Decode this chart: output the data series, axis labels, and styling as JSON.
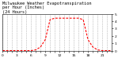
{
  "title": "Milwaukee Weather Evapotranspiration\nper Hour (Inches)\n(24 Hours)",
  "hours": [
    0,
    1,
    2,
    3,
    4,
    5,
    6,
    7,
    8,
    9,
    10,
    11,
    12,
    13,
    14,
    15,
    16,
    17,
    18,
    19,
    20,
    21,
    22,
    23
  ],
  "values": [
    0.0,
    0.0,
    0.0,
    0.0,
    0.0,
    0.0,
    0.0,
    0.001,
    0.005,
    0.015,
    0.042,
    0.044,
    0.044,
    0.044,
    0.044,
    0.044,
    0.044,
    0.042,
    0.015,
    0.005,
    0.001,
    0.0,
    0.0,
    0.0
  ],
  "line_color": "#ff0000",
  "grid_color": "#999999",
  "bg_color": "#ffffff",
  "ylim": [
    0,
    0.05
  ],
  "ytick_values": [
    0.0,
    0.01,
    0.02,
    0.03,
    0.04,
    0.05
  ],
  "ytick_labels": [
    "0",
    "1",
    "2",
    "3",
    "4",
    "5"
  ],
  "xlim": [
    0,
    23
  ],
  "title_fontsize": 3.8,
  "tick_fontsize": 3.2,
  "line_width": 0.8,
  "grid_linewidth": 0.4,
  "x_major_ticks": [
    0,
    1,
    2,
    3,
    4,
    5,
    6,
    7,
    8,
    9,
    10,
    11,
    12,
    13,
    14,
    15,
    16,
    17,
    18,
    19,
    20,
    21,
    22,
    23
  ]
}
